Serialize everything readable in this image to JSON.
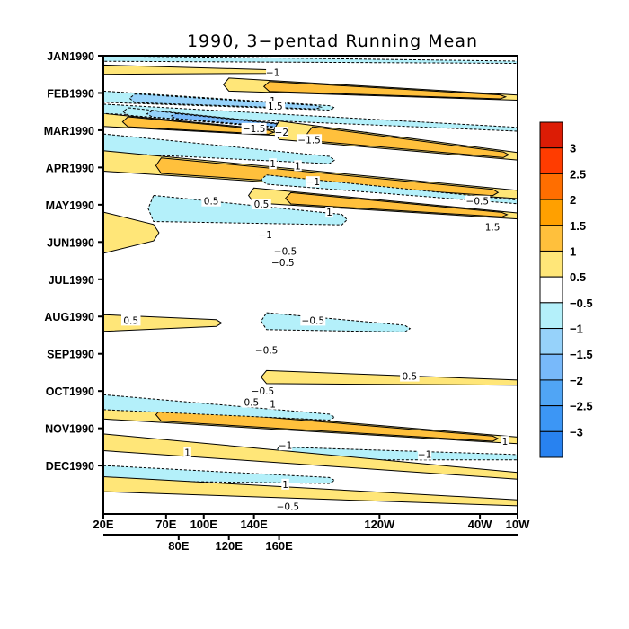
{
  "chart_data": {
    "type": "heatmap",
    "subtype": "filled-contour (Hovmoller, longitude vs time)",
    "title": "1990, 3−pentad Running Mean",
    "xlabel": "",
    "ylabel": "",
    "x_axis": {
      "range_deg_east": [
        20,
        350
      ],
      "ticks_primary": [
        {
          "label": "20E",
          "lon": 20
        },
        {
          "label": "70E",
          "lon": 70
        },
        {
          "label": "100E",
          "lon": 100
        },
        {
          "label": "140E",
          "lon": 140
        },
        {
          "label": "120W",
          "lon": 240
        },
        {
          "label": "40W",
          "lon": 320
        },
        {
          "label": "10W",
          "lon": 350
        }
      ],
      "ticks_secondary": [
        {
          "label": "80E",
          "lon": 80
        },
        {
          "label": "120E",
          "lon": 120
        },
        {
          "label": "160E",
          "lon": 160
        }
      ]
    },
    "y_axis": {
      "direction": "time increasing downward",
      "ticks": [
        {
          "label": "JAN1990",
          "month": 0
        },
        {
          "label": "FEB1990",
          "month": 1
        },
        {
          "label": "MAR1990",
          "month": 2
        },
        {
          "label": "APR1990",
          "month": 3
        },
        {
          "label": "MAY1990",
          "month": 4
        },
        {
          "label": "JUN1990",
          "month": 5
        },
        {
          "label": "JUL1990",
          "month": 6
        },
        {
          "label": "AUG1990",
          "month": 7
        },
        {
          "label": "SEP1990",
          "month": 8
        },
        {
          "label": "OCT1990",
          "month": 9
        },
        {
          "label": "NOV1990",
          "month": 10
        },
        {
          "label": "DEC1990",
          "month": 11
        }
      ],
      "range_months": [
        0,
        12.3
      ]
    },
    "colorbar": {
      "placement": "right",
      "levels": [
        "3",
        "2.5",
        "2",
        "1.5",
        "1",
        "0.5",
        "−0.5",
        "−1",
        "−1.5",
        "−2",
        "−2.5",
        "−3"
      ],
      "colors": [
        "#dc1c05",
        "#ff3c00",
        "#ff6e00",
        "#ffa000",
        "#ffc03c",
        "#ffe678",
        "#ffffff",
        "#b4f0fa",
        "#96d2fa",
        "#78b9fa",
        "#50a5f5",
        "#3c96f5",
        "#2882f0"
      ]
    },
    "bands": [
      {
        "lon0": 20,
        "lon1": 350,
        "t0": 0.0,
        "t1": 0.15,
        "slope": 0.1,
        "value": -0.7
      },
      {
        "lon0": 20,
        "lon1": 150,
        "t0": 0.25,
        "t1": 0.5,
        "slope": 0.05,
        "value": 0.8
      },
      {
        "lon0": 120,
        "lon1": 350,
        "t0": 0.6,
        "t1": 0.95,
        "slope": 0.35,
        "value": 1.3
      },
      {
        "lon0": 20,
        "lon1": 200,
        "t0": 0.95,
        "t1": 1.25,
        "slope": 0.3,
        "value": -1.2
      },
      {
        "lon0": 20,
        "lon1": 160,
        "t0": 1.55,
        "t1": 1.9,
        "slope": 0.35,
        "value": 1.4
      },
      {
        "lon0": 20,
        "lon1": 350,
        "t0": 1.3,
        "t1": 1.55,
        "slope": 0.55,
        "value": -0.8
      },
      {
        "lon0": 40,
        "lon1": 230,
        "t0": 1.4,
        "t1": 1.6,
        "slope": 0.6,
        "value": -1.6
      },
      {
        "lon0": 160,
        "lon1": 350,
        "t0": 1.75,
        "t1": 2.25,
        "slope": 0.7,
        "value": 1.3
      },
      {
        "lon0": 20,
        "lon1": 200,
        "t0": 2.1,
        "t1": 2.6,
        "slope": 0.45,
        "value": -0.8
      },
      {
        "lon0": 20,
        "lon1": 350,
        "t0": 2.55,
        "t1": 3.1,
        "slope": 0.9,
        "value": 1.2
      },
      {
        "lon0": 150,
        "lon1": 350,
        "t0": 3.2,
        "t1": 3.45,
        "slope": 0.6,
        "value": -0.7
      },
      {
        "lon0": 140,
        "lon1": 350,
        "t0": 3.55,
        "t1": 3.95,
        "slope": 0.55,
        "value": 1.2
      },
      {
        "lon0": 60,
        "lon1": 210,
        "t0": 3.75,
        "t1": 4.45,
        "slope": 0.3,
        "value": -0.9
      },
      {
        "lon0": 20,
        "lon1": 60,
        "t0": 4.2,
        "t1": 5.3,
        "slope": 0.0,
        "value": 0.7
      },
      {
        "lon0": 20,
        "lon1": 110,
        "t0": 6.95,
        "t1": 7.4,
        "slope": 0.0,
        "value": 1.0
      },
      {
        "lon0": 150,
        "lon1": 260,
        "t0": 6.9,
        "t1": 7.35,
        "slope": 0.2,
        "value": -0.8
      },
      {
        "lon0": 150,
        "lon1": 350,
        "t0": 8.45,
        "t1": 8.8,
        "slope": 0.15,
        "value": 0.6
      },
      {
        "lon0": 20,
        "lon1": 350,
        "t0": 9.3,
        "t1": 9.75,
        "slope": 0.8,
        "value": 1.1
      },
      {
        "lon0": 20,
        "lon1": 200,
        "t0": 9.1,
        "t1": 9.5,
        "slope": 0.4,
        "value": -0.9
      },
      {
        "lon0": 160,
        "lon1": 350,
        "t0": 10.5,
        "t1": 10.85,
        "slope": 0.1,
        "value": -0.9
      },
      {
        "lon0": 20,
        "lon1": 350,
        "t0": 10.15,
        "t1": 10.6,
        "slope": 0.9,
        "value": 0.9
      },
      {
        "lon0": 20,
        "lon1": 200,
        "t0": 11.0,
        "t1": 11.4,
        "slope": 0.2,
        "value": -0.8
      },
      {
        "lon0": 20,
        "lon1": 350,
        "t0": 11.3,
        "t1": 11.7,
        "slope": 0.5,
        "value": 0.8
      }
    ],
    "contour_labels": [
      {
        "text": "−1",
        "lon": 155,
        "t": 0.45
      },
      {
        "text": "1",
        "lon": 155,
        "t": 1.2
      },
      {
        "text": "1.5",
        "lon": 157,
        "t": 1.35
      },
      {
        "text": "−1.5",
        "lon": 140,
        "t": 1.95
      },
      {
        "text": "−2",
        "lon": 162,
        "t": 2.05
      },
      {
        "text": "−1.5",
        "lon": 184,
        "t": 2.25
      },
      {
        "text": "1",
        "lon": 155,
        "t": 2.9
      },
      {
        "text": "1",
        "lon": 175,
        "t": 2.95
      },
      {
        "text": "−1",
        "lon": 187,
        "t": 3.38
      },
      {
        "text": "0.5",
        "lon": 106,
        "t": 3.9
      },
      {
        "text": "0.5",
        "lon": 146,
        "t": 3.98
      },
      {
        "text": "−0.5",
        "lon": 318,
        "t": 3.9
      },
      {
        "text": "1",
        "lon": 200,
        "t": 4.2
      },
      {
        "text": "1.5",
        "lon": 330,
        "t": 4.6
      },
      {
        "text": "−1",
        "lon": 149,
        "t": 4.8
      },
      {
        "text": "−0.5",
        "lon": 165,
        "t": 5.25
      },
      {
        "text": "−0.5",
        "lon": 163,
        "t": 5.55
      },
      {
        "text": "0.5",
        "lon": 42,
        "t": 7.1
      },
      {
        "text": "−0.5",
        "lon": 187,
        "t": 7.1
      },
      {
        "text": "−0.5",
        "lon": 150,
        "t": 7.9
      },
      {
        "text": "0.5",
        "lon": 264,
        "t": 8.6
      },
      {
        "text": "−0.5",
        "lon": 147,
        "t": 9.0
      },
      {
        "text": "0.5",
        "lon": 138,
        "t": 9.3
      },
      {
        "text": "1",
        "lon": 155,
        "t": 9.35
      },
      {
        "text": "1",
        "lon": 340,
        "t": 10.35
      },
      {
        "text": "−1",
        "lon": 165,
        "t": 10.45
      },
      {
        "text": "−1",
        "lon": 276,
        "t": 10.7
      },
      {
        "text": "1",
        "lon": 87,
        "t": 10.65
      },
      {
        "text": "1",
        "lon": 165,
        "t": 11.5
      },
      {
        "text": "−0.5",
        "lon": 167,
        "t": 12.1
      }
    ]
  }
}
